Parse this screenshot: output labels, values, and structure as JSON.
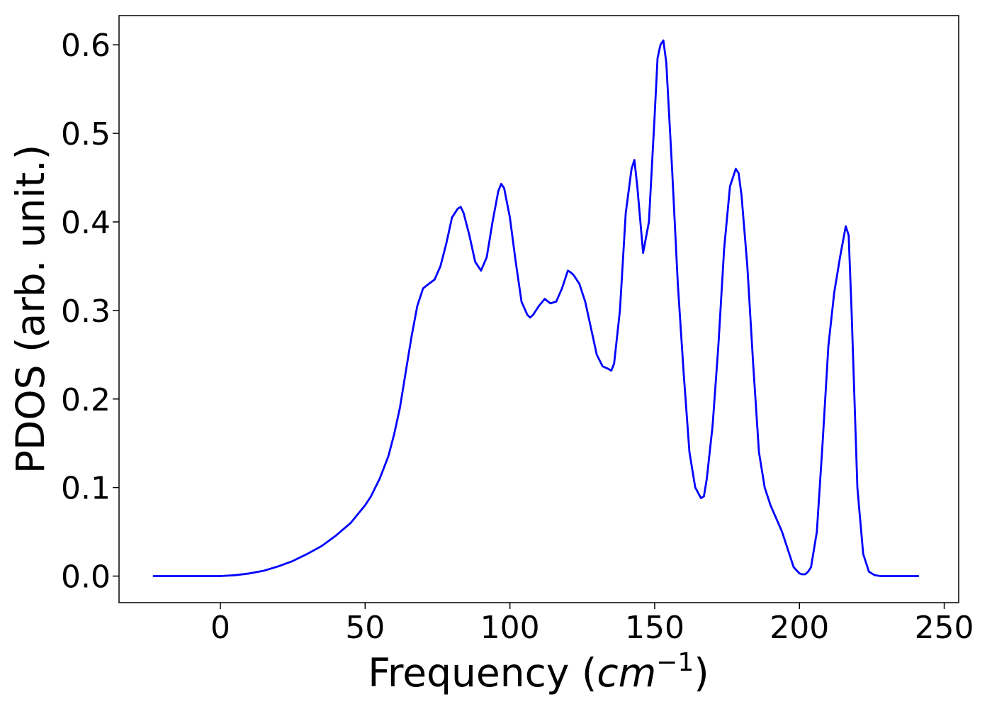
{
  "chart_data": {
    "type": "line",
    "title": "",
    "xlabel": "Frequency (",
    "xlabel_unit": "cm",
    "xlabel_unit_exp": "−1",
    "xlabel_close": ")",
    "ylabel": "PDOS (arb. unit.)",
    "xlim": [
      -35,
      255
    ],
    "ylim": [
      -0.03,
      0.633
    ],
    "grid": false,
    "line_color": "#0000ff",
    "xticks": [
      0,
      50,
      100,
      150,
      200,
      250
    ],
    "xtick_labels": [
      "0",
      "50",
      "100",
      "150",
      "200",
      "250"
    ],
    "yticks": [
      0.0,
      0.1,
      0.2,
      0.3,
      0.4,
      0.5,
      0.6
    ],
    "ytick_labels": [
      "0.0",
      "0.1",
      "0.2",
      "0.3",
      "0.4",
      "0.5",
      "0.6"
    ],
    "series": [
      {
        "x": [
          -23,
          -10,
          0,
          5,
          10,
          15,
          20,
          25,
          30,
          35,
          40,
          45,
          50,
          52,
          55,
          58,
          60,
          62,
          64,
          66,
          68,
          70,
          72,
          74,
          76,
          78,
          80,
          82,
          83,
          84,
          86,
          88,
          90,
          92,
          94,
          96,
          97,
          98,
          100,
          102,
          104,
          106,
          107,
          108,
          110,
          112,
          114,
          116,
          118,
          120,
          121,
          122,
          124,
          126,
          128,
          130,
          132,
          134,
          135,
          136,
          138,
          140,
          142,
          143,
          144,
          146,
          148,
          150,
          151,
          152,
          153,
          154,
          156,
          158,
          160,
          162,
          164,
          166,
          167,
          168,
          170,
          172,
          174,
          176,
          178,
          179,
          180,
          182,
          184,
          186,
          188,
          190,
          192,
          194,
          196,
          198,
          200,
          201,
          202,
          203,
          204,
          206,
          208,
          210,
          212,
          214,
          216,
          217,
          218,
          220,
          222,
          224,
          226,
          228,
          241
        ],
        "y": [
          0.0,
          0.0,
          0.0,
          0.001,
          0.003,
          0.006,
          0.011,
          0.017,
          0.025,
          0.034,
          0.046,
          0.06,
          0.08,
          0.09,
          0.11,
          0.135,
          0.16,
          0.19,
          0.23,
          0.27,
          0.305,
          0.325,
          0.33,
          0.335,
          0.35,
          0.375,
          0.405,
          0.415,
          0.417,
          0.41,
          0.385,
          0.355,
          0.345,
          0.36,
          0.4,
          0.435,
          0.443,
          0.438,
          0.405,
          0.355,
          0.31,
          0.295,
          0.292,
          0.295,
          0.305,
          0.313,
          0.308,
          0.31,
          0.325,
          0.345,
          0.343,
          0.34,
          0.33,
          0.31,
          0.28,
          0.25,
          0.237,
          0.234,
          0.232,
          0.24,
          0.3,
          0.41,
          0.46,
          0.47,
          0.44,
          0.365,
          0.4,
          0.52,
          0.585,
          0.6,
          0.605,
          0.58,
          0.46,
          0.33,
          0.23,
          0.14,
          0.1,
          0.088,
          0.09,
          0.11,
          0.17,
          0.26,
          0.37,
          0.44,
          0.46,
          0.455,
          0.43,
          0.35,
          0.24,
          0.14,
          0.1,
          0.08,
          0.065,
          0.05,
          0.03,
          0.01,
          0.003,
          0.002,
          0.002,
          0.005,
          0.01,
          0.05,
          0.15,
          0.26,
          0.32,
          0.36,
          0.395,
          0.385,
          0.3,
          0.1,
          0.025,
          0.005,
          0.001,
          0.0,
          0.0
        ]
      }
    ]
  }
}
